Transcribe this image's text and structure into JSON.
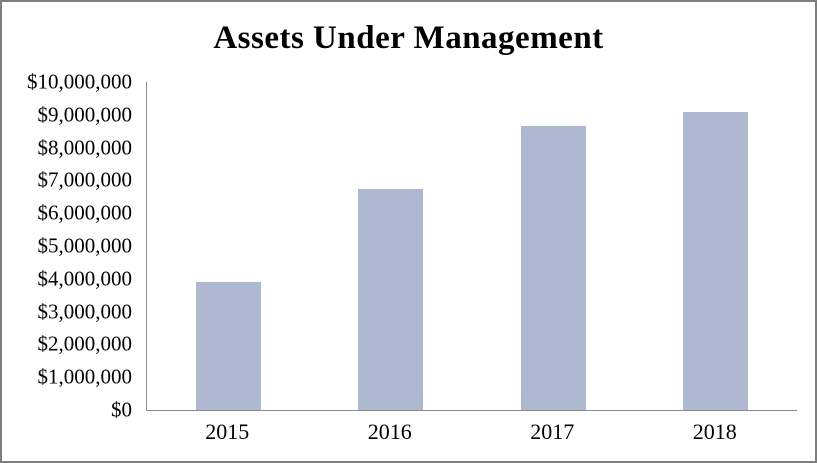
{
  "window": {
    "background": "#ffffff",
    "border_color": "#7f7f7f"
  },
  "chart_data": {
    "type": "bar",
    "title": "Assets Under Management",
    "categories": [
      "2015",
      "2016",
      "2017",
      "2018"
    ],
    "values": [
      3900000,
      6750000,
      8650000,
      9100000
    ],
    "y_tick_labels": [
      "$0",
      "$1,000,000",
      "$2,000,000",
      "$3,000,000",
      "$4,000,000",
      "$5,000,000",
      "$6,000,000",
      "$7,000,000",
      "$8,000,000",
      "$9,000,000",
      "$10,000,000"
    ],
    "ylim": [
      0,
      10000000
    ],
    "y_tick_step": 1000000,
    "xlabel": "",
    "ylabel": "",
    "grid": false,
    "legend": "none",
    "bar_color": "#afb8d1",
    "axis_color": "#8c8c8c",
    "text_color": "#000000"
  }
}
